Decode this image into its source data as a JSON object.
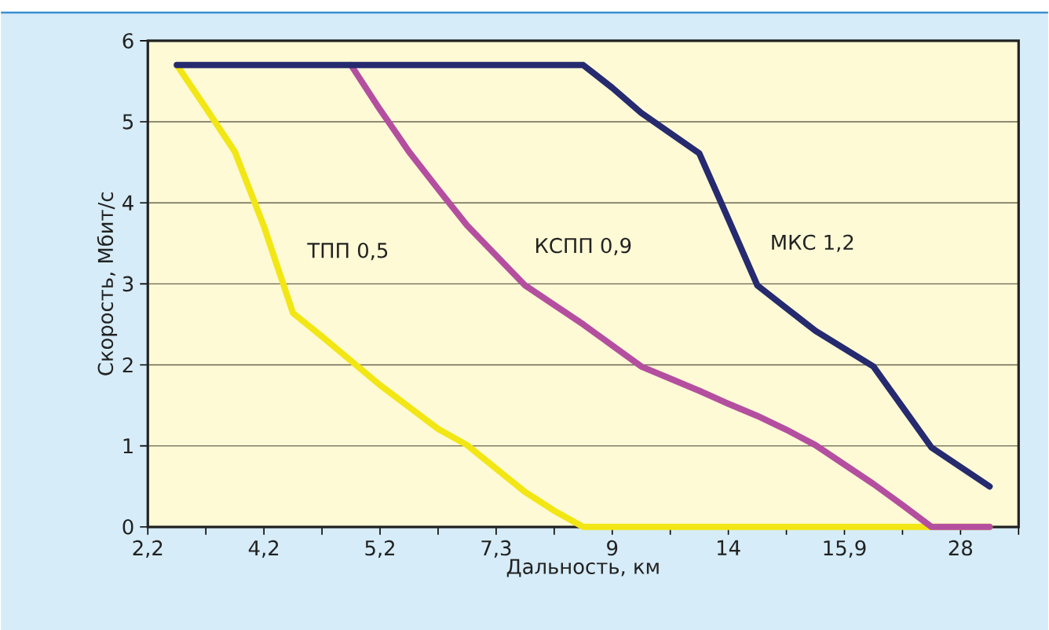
{
  "chart_data": {
    "type": "line",
    "xlabel": "Дальность, км",
    "ylabel": "Скорость, Мбит/с",
    "categories": [
      "2,2",
      null,
      null,
      null,
      "4,2",
      null,
      null,
      null,
      "5,2",
      null,
      null,
      null,
      "7,3",
      null,
      null,
      null,
      "9",
      null,
      null,
      null,
      "14",
      null,
      null,
      null,
      "15,9",
      null,
      null,
      null,
      "28",
      null,
      null
    ],
    "ylim": [
      0,
      6
    ],
    "yticks": [
      0,
      1,
      2,
      3,
      4,
      5,
      6
    ],
    "grid": "y",
    "legend": false,
    "marker": "none",
    "line_style": "solid",
    "series": [
      {
        "name": "ТПП 0,5",
        "color": "#f2e614",
        "values": [
          null,
          5.7,
          5.17,
          4.63,
          3.71,
          2.64,
          2.35,
          2.05,
          1.75,
          1.48,
          1.21,
          1.01,
          0.72,
          0.43,
          0.2,
          0,
          0,
          0,
          0,
          0,
          0,
          0,
          0,
          0,
          0,
          0,
          0,
          0,
          0,
          0,
          null
        ]
      },
      {
        "name": "КСПП 0,9",
        "color": "#b44fa0",
        "values": [
          null,
          null,
          null,
          null,
          null,
          null,
          null,
          5.7,
          5.15,
          4.63,
          4.17,
          3.72,
          3.35,
          2.98,
          2.74,
          2.5,
          2.24,
          1.98,
          1.83,
          1.68,
          1.52,
          1.37,
          1.2,
          1.01,
          0.77,
          0.53,
          0.27,
          0,
          0,
          0,
          null
        ]
      },
      {
        "name": "МКС 1,2",
        "color": "#262a6e",
        "values": [
          null,
          5.7,
          5.7,
          5.7,
          5.7,
          5.7,
          5.7,
          5.7,
          5.7,
          5.7,
          5.7,
          5.7,
          5.7,
          5.7,
          5.7,
          5.7,
          5.42,
          5.11,
          4.86,
          4.61,
          3.8,
          2.98,
          2.7,
          2.42,
          2.2,
          1.98,
          1.48,
          0.98,
          0.74,
          0.5,
          null
        ]
      }
    ]
  }
}
